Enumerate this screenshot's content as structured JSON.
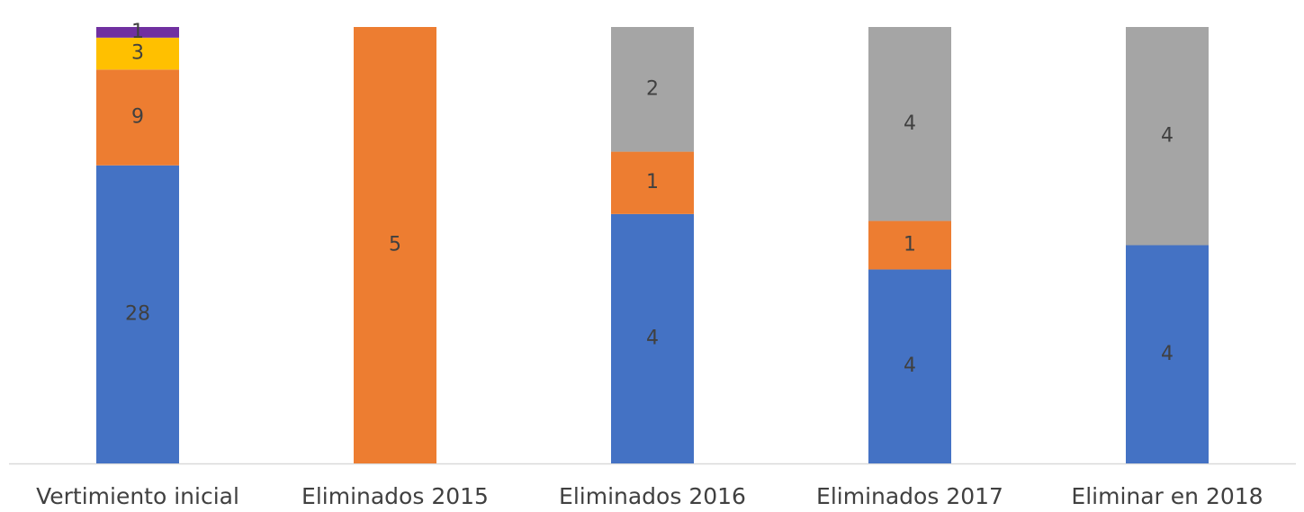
{
  "chart_data": {
    "type": "bar",
    "stacking": "percent",
    "categories": [
      "Vertimiento inicial",
      "Eliminados 2015",
      "Eliminados 2016",
      "Eliminados 2017",
      "Eliminar en 2018"
    ],
    "series": [
      {
        "color": "#4472c4",
        "values": [
          28,
          null,
          4,
          4,
          4
        ]
      },
      {
        "color": "#ed7d31",
        "values": [
          9,
          5,
          1,
          1,
          null
        ]
      },
      {
        "color": "#a5a5a5",
        "values": [
          null,
          null,
          2,
          4,
          4
        ]
      },
      {
        "color": "#ffc000",
        "values": [
          3,
          null,
          null,
          null,
          null
        ]
      },
      {
        "color": "#7030a0",
        "values": [
          1,
          null,
          null,
          null,
          null
        ]
      }
    ]
  }
}
